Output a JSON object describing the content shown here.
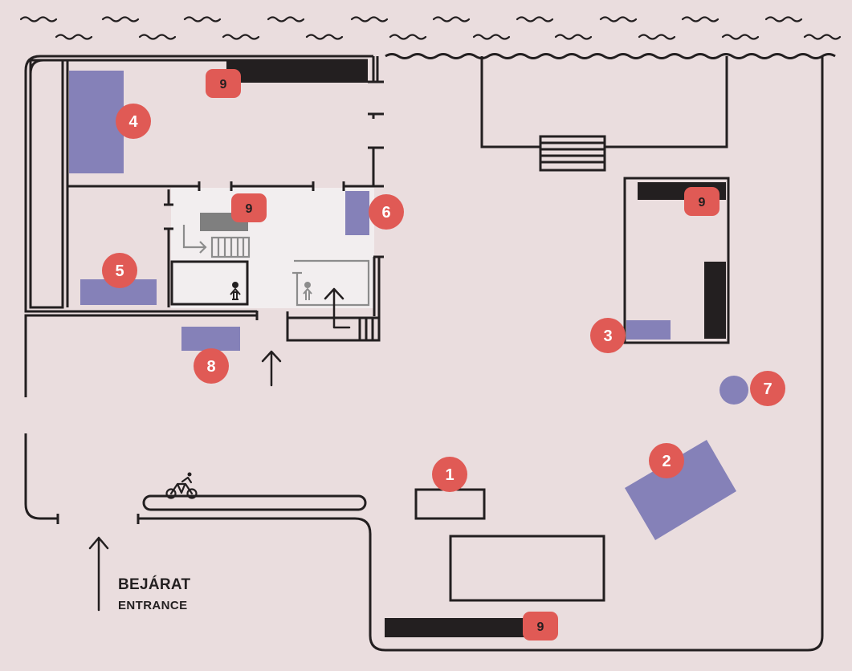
{
  "colors": {
    "background": "#eaddde",
    "wall": "#231f20",
    "area_fill": "#8581b8",
    "marker": "#e05a55",
    "marker_text": "#ffffff",
    "indoor_light": "#f2eeef",
    "indoor_grey": "#7f7f7f"
  },
  "entrance": {
    "label_hu": "BEJÁRAT",
    "label_en": "ENTRANCE"
  },
  "markers": {
    "m1": "1",
    "m2": "2",
    "m3": "3",
    "m4": "4",
    "m5": "5",
    "m6": "6",
    "m7": "7",
    "m8": "8",
    "m9_top": "9",
    "m9_center": "9",
    "m9_right": "9",
    "m9_bottom": "9"
  },
  "icons": {
    "bike": "bicycle-icon",
    "toilet": "toilet-icon",
    "water": "water-wave-icon",
    "arrow": "arrow-up-icon",
    "stairs": "stairs-icon"
  }
}
